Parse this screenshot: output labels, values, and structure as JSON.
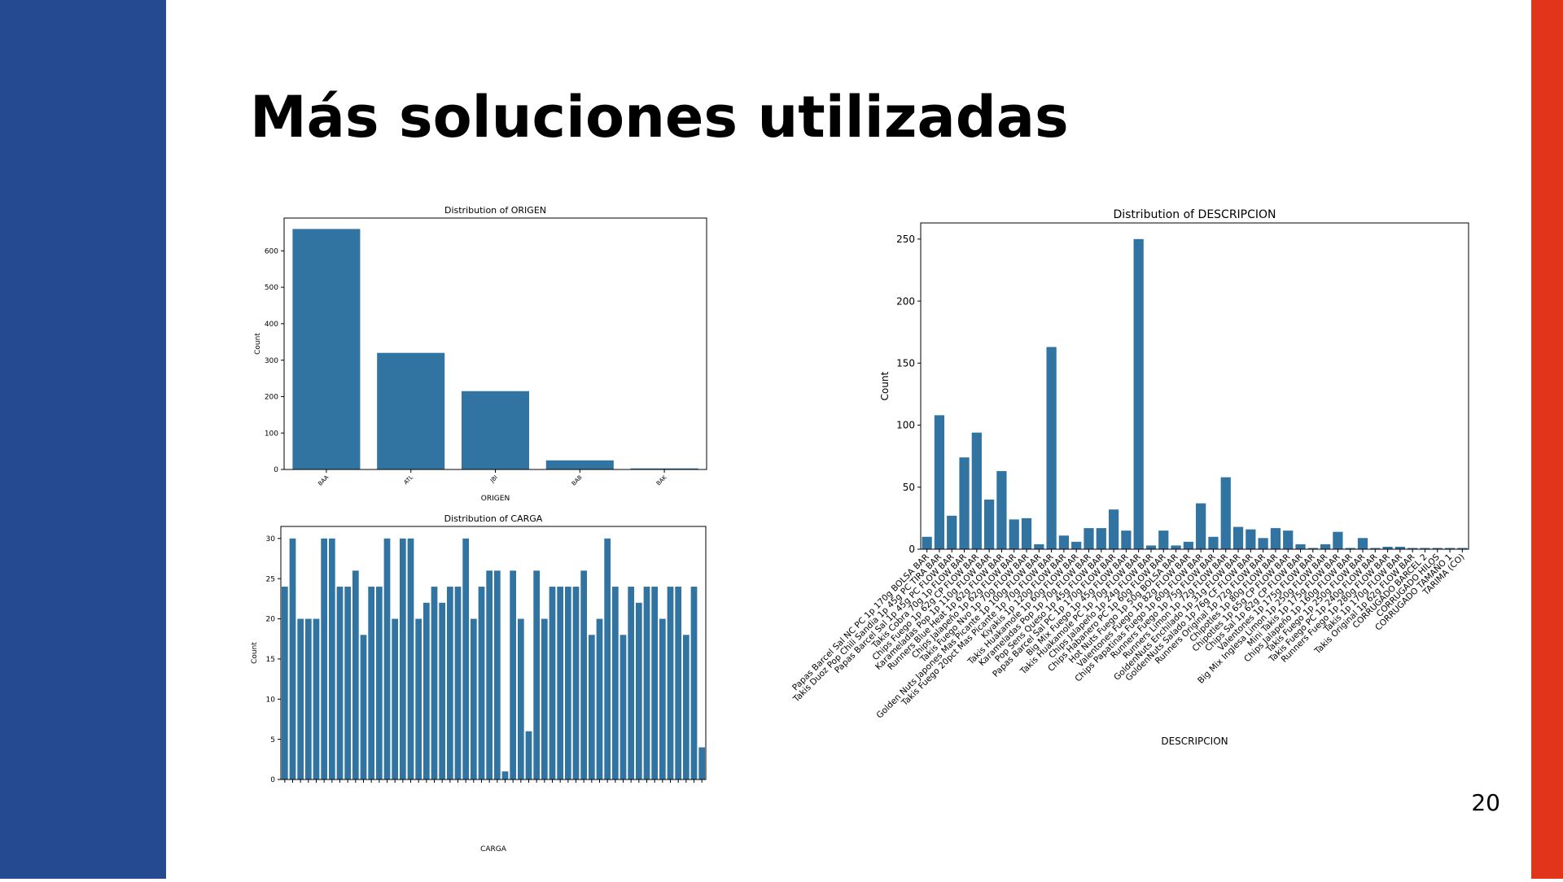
{
  "slide_title": "Más soluciones utilizadas",
  "page_number": "20",
  "chart_data": [
    {
      "type": "bar",
      "title": "Distribution of ORIGEN",
      "x_label": "ORIGEN",
      "y_label": "Count",
      "color": "#3274a1",
      "categories": [
        "BAA",
        "ATL",
        "JBI",
        "BAB",
        "BAK"
      ],
      "values": [
        660,
        320,
        215,
        25,
        3
      ],
      "ylim": [
        0,
        690
      ],
      "yticks": [
        0,
        100,
        200,
        300,
        400,
        500,
        600
      ]
    },
    {
      "type": "bar",
      "title": "Distribution of CARGA",
      "x_label": "CARGA",
      "y_label": "Count",
      "color": "#3274a1",
      "categories": [
        null,
        null,
        null,
        null,
        null,
        null,
        null,
        null,
        null,
        null,
        null,
        null,
        null,
        null,
        null,
        null,
        null,
        null,
        null,
        null,
        null,
        null,
        null,
        null,
        null,
        null,
        null,
        null,
        null,
        null,
        null,
        null,
        null,
        null,
        null,
        null,
        null,
        null,
        null,
        null,
        null,
        null,
        null,
        null,
        null,
        null,
        null,
        null,
        null,
        null,
        null,
        null,
        null,
        null
      ],
      "values": [
        24,
        30,
        20,
        20,
        20,
        30,
        30,
        24,
        24,
        26,
        18,
        24,
        24,
        30,
        20,
        30,
        30,
        20,
        22,
        24,
        22,
        24,
        24,
        30,
        20,
        24,
        26,
        26,
        1,
        26,
        20,
        6,
        26,
        20,
        24,
        24,
        24,
        24,
        26,
        18,
        20,
        30,
        24,
        18,
        24,
        22,
        24,
        24,
        20,
        24,
        24,
        18,
        24,
        4
      ],
      "ylim": [
        0,
        31.5
      ],
      "yticks": [
        0,
        5,
        10,
        15,
        20,
        25,
        30
      ]
    },
    {
      "type": "bar",
      "title": "Distribution of DESCRIPCION",
      "x_label": "DESCRIPCION",
      "y_label": "Count",
      "color": "#3274a1",
      "categories": [
        "Papas Barcel Sal NC PC 1p 170g BOLSA BAR",
        "Takis Duoz Pop Chili Sandia 1p 45g PC TIRA BAR",
        "Papas Barcel Sal 1p 45g PC FLOW BAR",
        "Takis Cobra 70g 1p FLOW BAR",
        "Chips Fuego 1p 62g CP FLOW BAR",
        "Karameladas Pop 1p 110g FLOW BAR",
        "Runners Blue Heat 1p 62g FLOW BAR",
        "Chips Jalapeño 1p 62g FLOW BAR",
        "Takis Fuego Nvo 1p 70g FLOW BAR",
        "Golden Nuts Japones Mas Picante 1p 100g FLOW BAR",
        "Takis Fuego 20pct Mas Picante 1p 70g FLOW BAR",
        "Kiyakis 1p 120g FLOW BAR",
        "Takis Huakamole 1p 60g FLOW BAR",
        "Karameladas Pop 1p 70g FLOW BAR",
        "Pop Sens Queso 1p 45g FLOW BAR",
        "Papas Barcel Sal PC 1p 170g FLOW BAR",
        "Big Mix Fuego 1p 45g FLOW BAR",
        "Takis Huakamole PC 1p 70g FLOW BAR",
        "Chips Jalapeño 1p 24g FLOW BAR",
        "Chips Habanero PC 1p 60g FLOW BAR",
        "Hot Nuts Fuego 1p 50g BOLSA BAR",
        "Valentones Fuego 1p 82g FLOW BAR",
        "Chips Papatinas Fuego 1p 60g FLOW BAR",
        "Runners Fuego 1p 75g FLOW BAR",
        "Runners Limon 1p 72g FLOW BAR",
        "GoldenNuts Enchilado 1p 31g FLOW BAR",
        "GoldenNuts Salado 1p 76g CF FLOW BAR",
        "Runners Original 1p 72g FLOW BAR",
        "Chipotles 1p 80g FLOW BAR",
        "Chipotles 1p 65g CP FLOW BAR",
        "Chips Sal 1p 62g CP FLOW BAR",
        "Valentones 1p 175g FLOW BAR",
        "Big Mix Inglesa Limon 1p 250g FLOW BAR",
        "Mini Takis 1p 175g FLOW BAR",
        "Chips Jalapeño 1p 160g FLOW BAR",
        "Takis Fuego 1p 250g FLOW BAR",
        "Takis Fuego PC 1p 240g FLOW BAR",
        "Runners Fuego 1p 280g FLOW BAR",
        "Takis 1p 170g FLOW BAR",
        "Takis Original 1p 62g FLOW BAR",
        "CORRUGADO BARCEL 2",
        "CORRUGADO HILOS",
        "CORRUGADO TAMAÑO 1",
        "TARIMA (CO)"
      ],
      "values": [
        10,
        108,
        27,
        74,
        94,
        40,
        63,
        24,
        25,
        4,
        163,
        11,
        6,
        17,
        17,
        32,
        15,
        250,
        3,
        15,
        3,
        6,
        37,
        10,
        58,
        18,
        16,
        9,
        17,
        15,
        4,
        1,
        4,
        14,
        1,
        9,
        1,
        2,
        2,
        1,
        1,
        1,
        1,
        1
      ],
      "ylim": [
        0,
        263
      ],
      "yticks": [
        0,
        50,
        100,
        150,
        200,
        250
      ]
    }
  ]
}
